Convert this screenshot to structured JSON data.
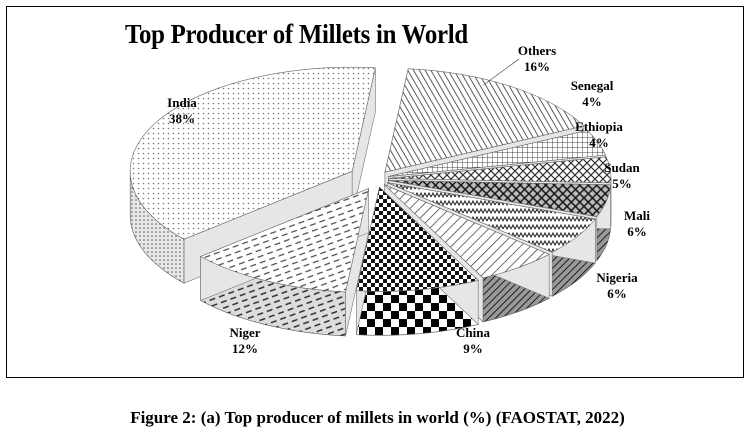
{
  "chart_data": {
    "type": "pie",
    "title": "Top Producer of Millets in World",
    "slices": [
      {
        "label": "Others",
        "value": 16,
        "value_label": "16%"
      },
      {
        "label": "Senegal",
        "value": 4,
        "value_label": "4%"
      },
      {
        "label": "Ethiopia",
        "value": 4,
        "value_label": "4%"
      },
      {
        "label": "Sudan",
        "value": 5,
        "value_label": "5%"
      },
      {
        "label": "Mali",
        "value": 6,
        "value_label": "6%"
      },
      {
        "label": "Nigeria",
        "value": 6,
        "value_label": "6%"
      },
      {
        "label": "China",
        "value": 9,
        "value_label": "9%"
      },
      {
        "label": "Niger",
        "value": 12,
        "value_label": "12%"
      },
      {
        "label": "India",
        "value": 38,
        "value_label": "38%"
      }
    ],
    "style": "3d-exploded",
    "fill": "monochrome-patterns"
  },
  "caption": "Figure 2: (a) Top producer of millets in world (%) (FAOSTAT, 2022)"
}
